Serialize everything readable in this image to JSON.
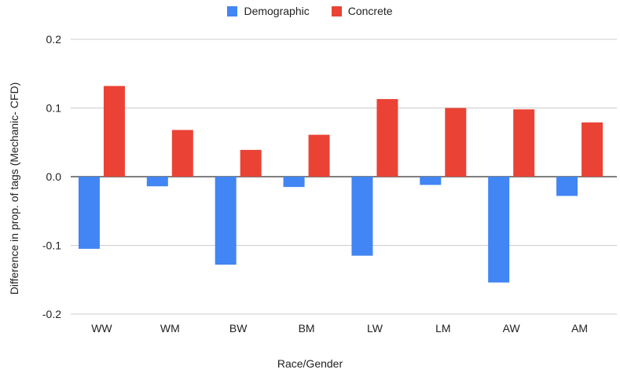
{
  "chart_data": {
    "type": "bar",
    "xlabel": "Race/Gender",
    "ylabel": "Difference in prop. of tags (Mechanic- CFD)",
    "ylim": [
      -0.2,
      0.2
    ],
    "yticks": [
      "0.2",
      "0.1",
      "0.0",
      "-0.1",
      "-0.2"
    ],
    "ytick_values": [
      0.2,
      0.1,
      0.0,
      -0.1,
      -0.2
    ],
    "categories": [
      "WW",
      "WM",
      "BW",
      "BM",
      "LW",
      "LM",
      "AW",
      "AM"
    ],
    "legend_position": "top",
    "grid": true,
    "series": [
      {
        "name": "Demographic",
        "color": "#4285F4",
        "values": [
          -0.105,
          -0.014,
          -0.128,
          -0.015,
          -0.115,
          -0.012,
          -0.154,
          -0.028
        ]
      },
      {
        "name": "Concrete",
        "color": "#EA4335",
        "values": [
          0.132,
          0.068,
          0.039,
          0.061,
          0.113,
          0.1,
          0.098,
          0.079
        ]
      }
    ]
  }
}
